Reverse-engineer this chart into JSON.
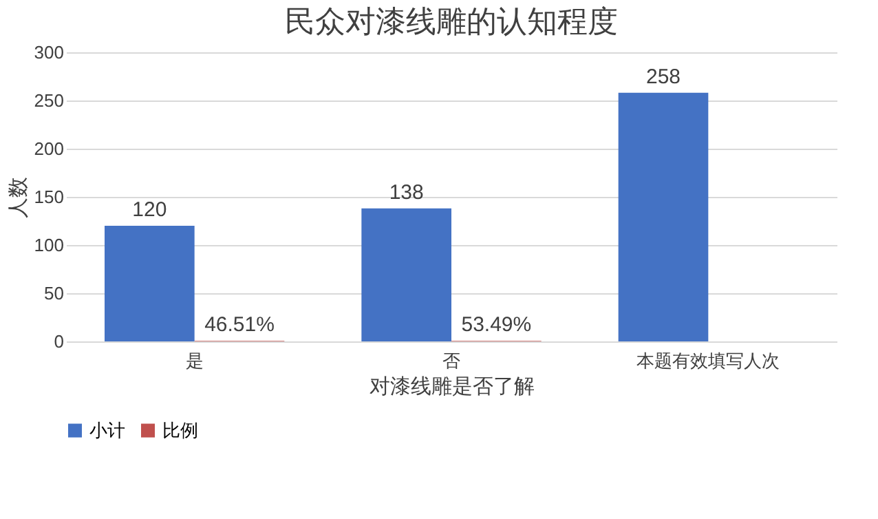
{
  "chart_data": {
    "type": "bar",
    "title": "民众对漆线雕的认知程度",
    "xlabel": "对漆线雕是否了解",
    "ylabel": "人数",
    "categories": [
      "是",
      "否",
      "本题有效填写人次"
    ],
    "series": [
      {
        "name": "小计",
        "color": "#4472c4",
        "values": [
          120,
          138,
          258
        ],
        "value_labels": [
          "120",
          "138",
          "258"
        ]
      },
      {
        "name": "比例",
        "color": "#c0504d",
        "values": [
          0.4651,
          0.5349,
          null
        ],
        "value_labels": [
          "46.51%",
          "53.49%",
          null
        ]
      }
    ],
    "ylim": [
      0,
      300
    ],
    "yticks": [
      0,
      50,
      100,
      150,
      200,
      250,
      300
    ],
    "grid": "y",
    "legend": "bottom"
  }
}
